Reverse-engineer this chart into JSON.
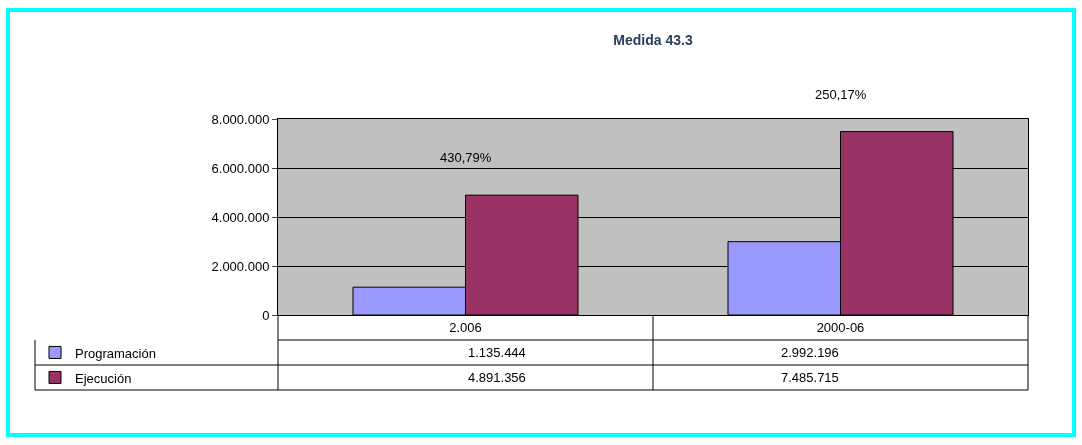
{
  "chart_data": {
    "type": "bar",
    "title": "Medida 43.3",
    "categories": [
      "2.006",
      "2000-06"
    ],
    "series": [
      {
        "name": "Programación",
        "color": "#9999ff",
        "values": [
          1135444,
          2992196
        ],
        "value_labels": [
          "1.135.444",
          "2.992.196"
        ]
      },
      {
        "name": "Ejecución",
        "color": "#993366",
        "values": [
          4891356,
          7485715
        ],
        "value_labels": [
          "4.891.356",
          "7.485.715"
        ]
      }
    ],
    "ylim": [
      0,
      8000000
    ],
    "yticks": [
      0,
      {
        "value": 2000000,
        "label": "2.000.000"
      },
      {
        "value": 4000000,
        "label": "4.000.000"
      },
      {
        "value": 6000000,
        "label": "6.000.000"
      },
      {
        "value": 8000000,
        "label": "8.000.000"
      }
    ],
    "grid": "y",
    "legend": "bottom left",
    "annotations": [
      {
        "text": "430,79%",
        "x": "2.006",
        "y": 4891356
      },
      {
        "text": "250,17%",
        "x": "2000-06",
        "y": 7485715
      }
    ]
  }
}
